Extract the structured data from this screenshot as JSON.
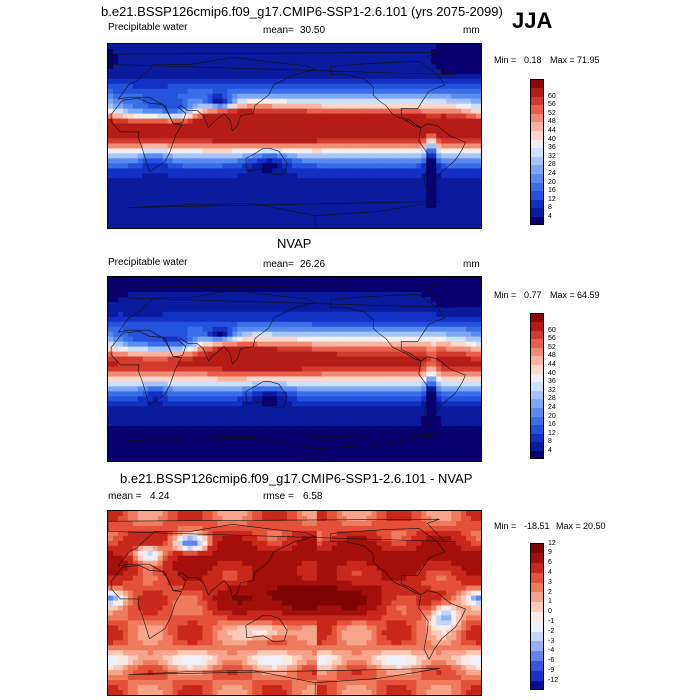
{
  "season": "JJA",
  "colors": {
    "abs": [
      "#08006e",
      "#0a1a9c",
      "#1230c4",
      "#2452dc",
      "#3a6ee8",
      "#5a8bf0",
      "#7ea8f6",
      "#a6c4fa",
      "#cde0fc",
      "#f3eef0",
      "#fbd7cb",
      "#f8b4a0",
      "#f28b73",
      "#e8604c",
      "#d23a2d",
      "#b51c17",
      "#8c0805"
    ],
    "diff": [
      "#0a0c95",
      "#1a2fc8",
      "#3657e4",
      "#6285f0",
      "#94b0f6",
      "#c4d5fb",
      "#eef0fb",
      "#fde9e3",
      "#fbcab8",
      "#f6a48a",
      "#ee7b5e",
      "#e3513a",
      "#c8281c",
      "#a30f0b",
      "#7d0502"
    ]
  },
  "panels": [
    {
      "title": "b.e21.BSSP126cmip6.f09_g17.CMIP6-SSP1-2.6.101 (yrs 2075-2099)",
      "left_label": "Precipitable water",
      "mean_label": "mean=",
      "mean_value": "30.50",
      "units": "mm",
      "min_label": "Min =",
      "min_value": "0.18",
      "max_label": "Max =",
      "max_value": "71.95"
    },
    {
      "title": "NVAP",
      "left_label": "Precipitable water",
      "mean_label": "mean=",
      "mean_value": "26.26",
      "units": "mm",
      "min_label": "Min =",
      "min_value": "0.77",
      "max_label": "Max =",
      "max_value": "64.59"
    },
    {
      "title": "b.e21.BSSP126cmip6.f09_g17.CMIP6-SSP1-2.6.101 - NVAP",
      "mean_label": "mean =",
      "mean_value": "4.24",
      "rmse_label": "rmse =",
      "rmse_value": "6.58",
      "min_label": "Min =",
      "min_value": "-18.51",
      "max_label": "Max =",
      "max_value": "20.50"
    }
  ],
  "chart_data": [
    {
      "type": "heatmap",
      "title": "b.e21.BSSP126cmip6.f09_g17.CMIP6-SSP1-2.6.101 (yrs 2075-2099)",
      "variable": "Precipitable water",
      "units": "mm",
      "mean": 30.5,
      "min": 0.18,
      "max": 71.95,
      "colorbar_levels": [
        4,
        8,
        12,
        16,
        20,
        24,
        28,
        32,
        36,
        40,
        44,
        48,
        52,
        56,
        60
      ]
    },
    {
      "type": "heatmap",
      "title": "NVAP",
      "variable": "Precipitable water",
      "units": "mm",
      "mean": 26.26,
      "min": 0.77,
      "max": 64.59,
      "colorbar_levels": [
        4,
        8,
        12,
        16,
        20,
        24,
        28,
        32,
        36,
        40,
        44,
        48,
        52,
        56,
        60
      ]
    },
    {
      "type": "heatmap",
      "title": "b.e21.BSSP126cmip6.f09_g17.CMIP6-SSP1-2.6.101 - NVAP",
      "mean": 4.24,
      "rmse": 6.58,
      "min": -18.51,
      "max": 20.5,
      "colorbar_levels": [
        -12,
        -9,
        -6,
        -4,
        -3,
        -2,
        -1,
        0,
        1,
        2,
        3,
        4,
        6,
        9,
        12
      ]
    }
  ]
}
